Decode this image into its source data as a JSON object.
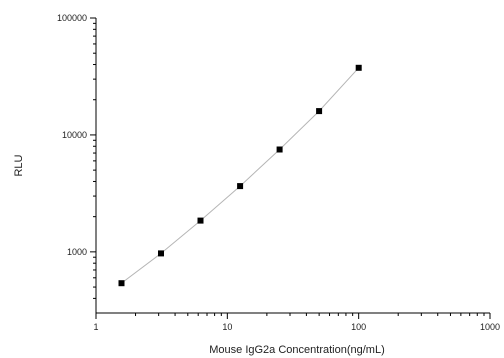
{
  "chart_data": {
    "type": "scatter",
    "x_scale": "log",
    "y_scale": "log",
    "xlim": [
      1,
      1000
    ],
    "ylim": [
      300,
      100000
    ],
    "xlabel": "Mouse IgG2a Concentration(ng/mL)",
    "ylabel": "RLU",
    "x_ticks": [
      1,
      10,
      100,
      1000
    ],
    "x_tick_labels": [
      "1",
      "10",
      "100",
      "1000"
    ],
    "y_ticks": [
      1000,
      10000,
      100000
    ],
    "y_tick_labels": [
      "1000",
      "10000",
      "100000"
    ],
    "grid": false,
    "legend": "none",
    "series": [
      {
        "x": [
          1.5625,
          3.125,
          6.25,
          12.5,
          25,
          50,
          100
        ],
        "y": [
          540,
          970,
          1850,
          3650,
          7500,
          16000,
          37500
        ],
        "marker_color": "#000000",
        "fit_line_color": "#b5b5b5"
      }
    ]
  }
}
